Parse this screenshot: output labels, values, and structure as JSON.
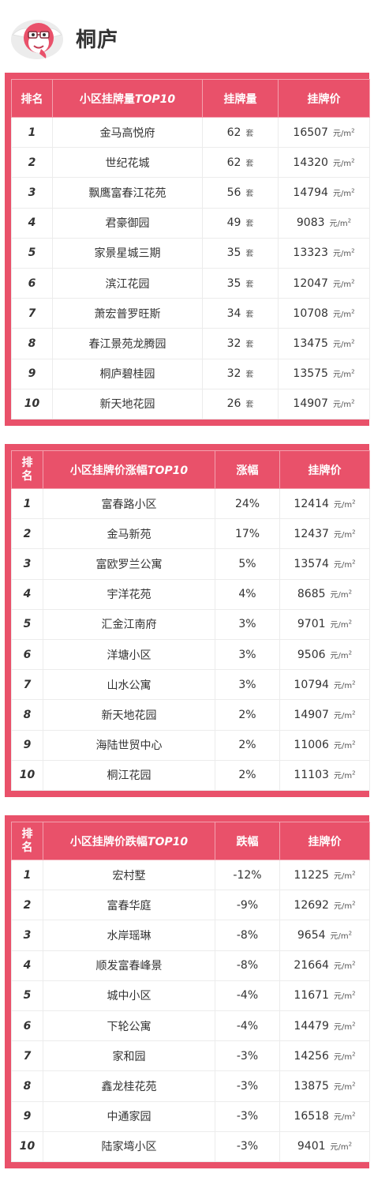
{
  "page": {
    "title": "桐庐"
  },
  "units": {
    "set": "套",
    "price_unit": "元/m",
    "price_sup": "2"
  },
  "table1": {
    "headers": [
      "排名",
      "小区挂牌量",
      "TOP10",
      "挂牌量",
      "挂牌价"
    ],
    "rows": [
      {
        "rank": "1",
        "name": "金马高悦府",
        "count": "62",
        "price": "16507"
      },
      {
        "rank": "2",
        "name": "世纪花城",
        "count": "62",
        "price": "14320"
      },
      {
        "rank": "3",
        "name": "飘鹰富春江花苑",
        "count": "56",
        "price": "14794"
      },
      {
        "rank": "4",
        "name": "君豪御园",
        "count": "49",
        "price": "9083"
      },
      {
        "rank": "5",
        "name": "家景星城三期",
        "count": "35",
        "price": "13323"
      },
      {
        "rank": "6",
        "name": "滨江花园",
        "count": "35",
        "price": "12047"
      },
      {
        "rank": "7",
        "name": "萧宏普罗旺斯",
        "count": "34",
        "price": "10708"
      },
      {
        "rank": "8",
        "name": "春江景苑龙腾园",
        "count": "32",
        "price": "13475"
      },
      {
        "rank": "9",
        "name": "桐庐碧桂园",
        "count": "32",
        "price": "13575"
      },
      {
        "rank": "10",
        "name": "新天地花园",
        "count": "26",
        "price": "14907"
      }
    ]
  },
  "table2": {
    "headers": [
      "排",
      "名",
      "小区挂牌价涨幅",
      "TOP10",
      "涨幅",
      "挂牌价"
    ],
    "rows": [
      {
        "rank": "1",
        "name": "富春路小区",
        "change": "24%",
        "price": "12414"
      },
      {
        "rank": "2",
        "name": "金马新苑",
        "change": "17%",
        "price": "12437"
      },
      {
        "rank": "3",
        "name": "富欧罗兰公寓",
        "change": "5%",
        "price": "13574"
      },
      {
        "rank": "4",
        "name": "宇洋花苑",
        "change": "4%",
        "price": "8685"
      },
      {
        "rank": "5",
        "name": "汇金江南府",
        "change": "3%",
        "price": "9701"
      },
      {
        "rank": "6",
        "name": "洋塘小区",
        "change": "3%",
        "price": "9506"
      },
      {
        "rank": "7",
        "name": "山水公寓",
        "change": "3%",
        "price": "10794"
      },
      {
        "rank": "8",
        "name": "新天地花园",
        "change": "2%",
        "price": "14907"
      },
      {
        "rank": "9",
        "name": "海陆世贸中心",
        "change": "2%",
        "price": "11006"
      },
      {
        "rank": "10",
        "name": "桐江花园",
        "change": "2%",
        "price": "11103"
      }
    ]
  },
  "table3": {
    "headers": [
      "排",
      "名",
      "小区挂牌价跌幅",
      "TOP10",
      "跌幅",
      "挂牌价"
    ],
    "rows": [
      {
        "rank": "1",
        "name": "宏村墅",
        "change": "-12%",
        "price": "11225"
      },
      {
        "rank": "2",
        "name": "富春华庭",
        "change": "-9%",
        "price": "12692"
      },
      {
        "rank": "3",
        "name": "水岸瑶琳",
        "change": "-8%",
        "price": "9654"
      },
      {
        "rank": "4",
        "name": "顺发富春峰景",
        "change": "-8%",
        "price": "21664"
      },
      {
        "rank": "5",
        "name": "城中小区",
        "change": "-4%",
        "price": "11671"
      },
      {
        "rank": "6",
        "name": "下轮公寓",
        "change": "-4%",
        "price": "14479"
      },
      {
        "rank": "7",
        "name": "家和园",
        "change": "-3%",
        "price": "14256"
      },
      {
        "rank": "8",
        "name": "鑫龙桂花苑",
        "change": "-3%",
        "price": "13875"
      },
      {
        "rank": "9",
        "name": "中通家园",
        "change": "-3%",
        "price": "16518"
      },
      {
        "rank": "10",
        "name": "陆家塆小区",
        "change": "-3%",
        "price": "9401"
      }
    ]
  },
  "colors": {
    "accent": "#e9516a",
    "header_text": "#ffffff",
    "border": "#ececec"
  },
  "icons": {
    "mascot": "cartoon-mascot-icon"
  }
}
